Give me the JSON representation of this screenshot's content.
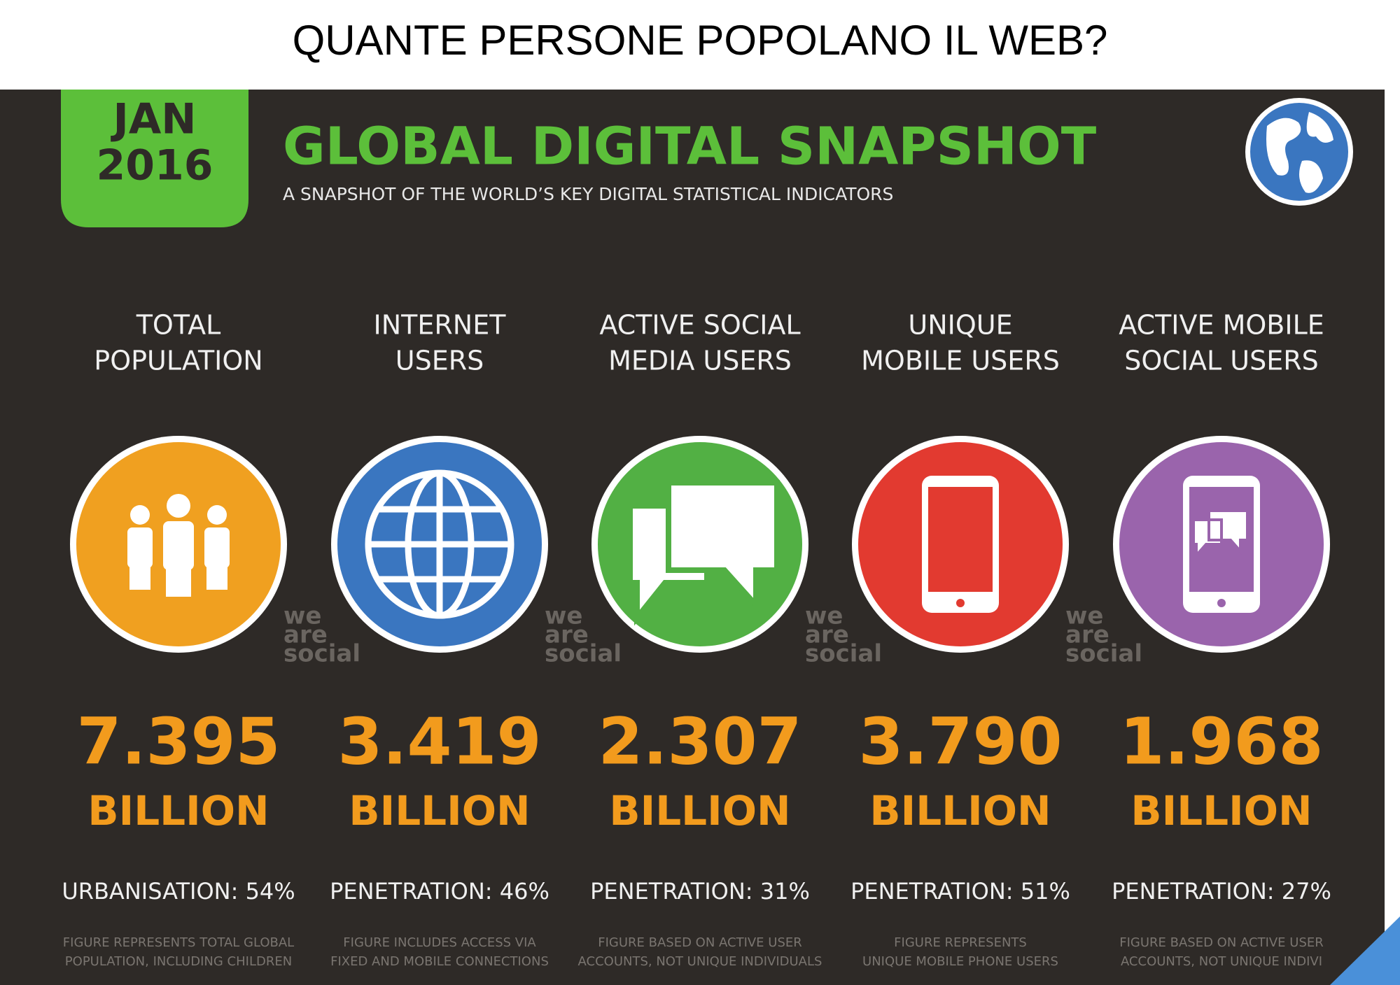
{
  "header": {
    "title": "QUANTE PERSONE POPOLANO IL WEB?"
  },
  "badge": {
    "month": "JAN",
    "year": "2016"
  },
  "title": "GLOBAL DIGITAL SNAPSHOT",
  "subtitle": "A SNAPSHOT OF THE WORLD’S KEY DIGITAL STATISTICAL INDICATORS",
  "watermark": [
    "we",
    "are",
    "social"
  ],
  "columns": [
    {
      "label": [
        "TOTAL",
        "POPULATION"
      ],
      "value": "7.395",
      "unit": "BILLION",
      "stat": "URBANISATION: 54%",
      "note": [
        "FIGURE REPRESENTS TOTAL GLOBAL",
        "POPULATION, INCLUDING CHILDREN"
      ]
    },
    {
      "label": [
        "INTERNET",
        "USERS"
      ],
      "value": "3.419",
      "unit": "BILLION",
      "stat": "PENETRATION: 46%",
      "note": [
        "FIGURE INCLUDES ACCESS VIA",
        "FIXED AND MOBILE CONNECTIONS"
      ]
    },
    {
      "label": [
        "ACTIVE SOCIAL",
        "MEDIA USERS"
      ],
      "value": "2.307",
      "unit": "BILLION",
      "stat": "PENETRATION: 31%",
      "note": [
        "FIGURE BASED ON ACTIVE USER",
        "ACCOUNTS, NOT UNIQUE INDIVIDUALS"
      ]
    },
    {
      "label": [
        "UNIQUE",
        "MOBILE USERS"
      ],
      "value": "3.790",
      "unit": "BILLION",
      "stat": "PENETRATION: 51%",
      "note": [
        "FIGURE REPRESENTS",
        "UNIQUE MOBILE PHONE USERS"
      ]
    },
    {
      "label": [
        "ACTIVE MOBILE",
        "SOCIAL USERS"
      ],
      "value": "1.968",
      "unit": "BILLION",
      "stat": "PENETRATION: 27%",
      "note": [
        "FIGURE BASED ON ACTIVE USER",
        "ACCOUNTS, NOT UNIQUE INDIVI"
      ]
    }
  ]
}
